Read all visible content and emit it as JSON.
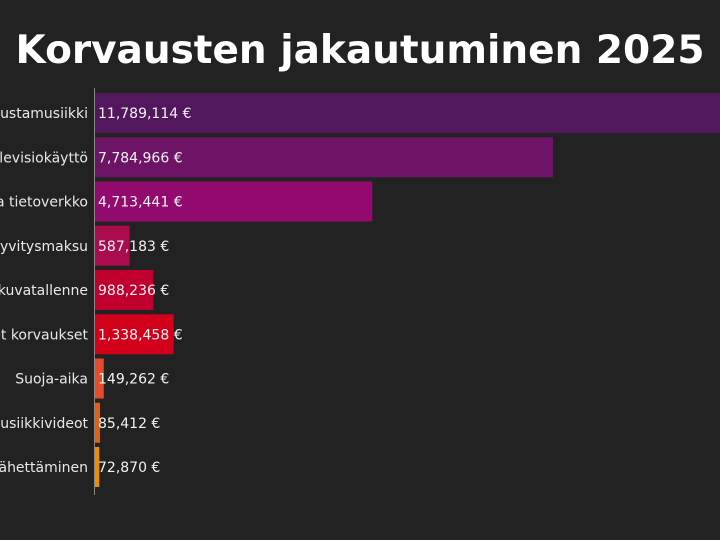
{
  "chart_data": {
    "type": "bar",
    "orientation": "horizontal",
    "title": "Korvausten jakautuminen 2025",
    "categories": [
      "austamusiikki",
      "elevisiokäyttö",
      "a tietoverkko",
      "dyvitysmaksu",
      "kuvatallenne",
      "et korvaukset",
      "Suoja-aika",
      "usiikkivideot",
      "ähettäminen"
    ],
    "values": [
      11789114,
      7784966,
      4713441,
      587183,
      988236,
      1338458,
      149262,
      85412,
      72870
    ],
    "value_labels": [
      "11,789,114 €",
      "7,784,966 €",
      "4,713,441 €",
      "587,183 €",
      "988,236 €",
      "1,338,458 €",
      "149,262 €",
      "85,412 €",
      "72,870 €"
    ],
    "colors": [
      "#53175e",
      "#6e1466",
      "#920a6e",
      "#ab0c4e",
      "#c1002f",
      "#d2001b",
      "#e84a2c",
      "#e5600e",
      "#f08c00"
    ],
    "xlabel": "",
    "ylabel": "",
    "grid": false,
    "background": "#222222"
  }
}
